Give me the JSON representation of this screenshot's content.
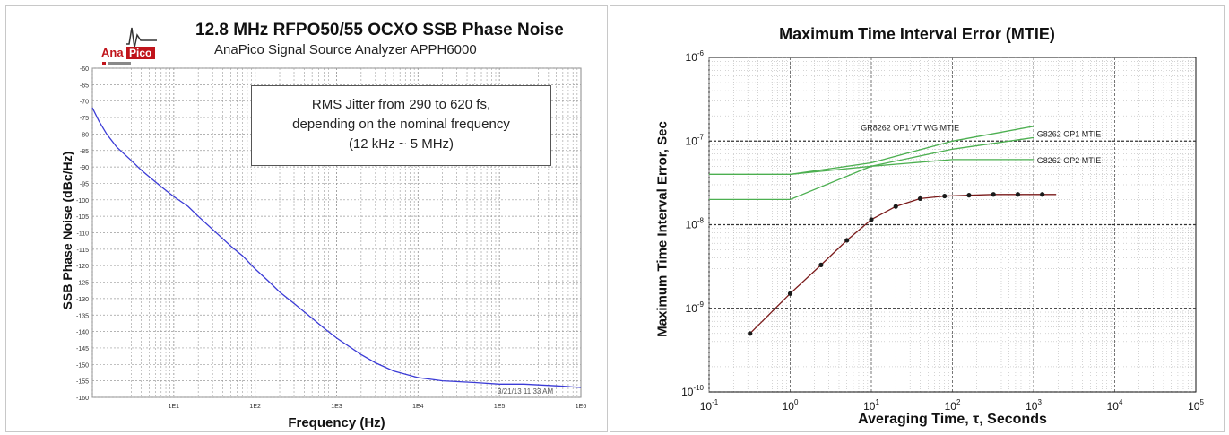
{
  "left": {
    "title": "12.8 MHz RFPO50/55 OCXO SSB Phase Noise",
    "subtitle": "AnaPico Signal Source Analyzer APPH6000",
    "logo_text": "AnaPico",
    "annotation_lines": [
      "RMS Jitter from 290 to 620 fs,",
      "depending on the nominal frequency",
      "(12 kHz ~ 5 MHz)"
    ],
    "timestamp": "3/21/13 11:33 AM"
  },
  "right": {
    "title": "Maximum Time Interval Error (MTIE)"
  },
  "chart_data": [
    {
      "type": "line",
      "title": "12.8 MHz RFPO50/55 OCXO SSB Phase Noise",
      "xlabel": "Frequency (Hz)",
      "ylabel": "SSB Phase Noise (dBc/Hz)",
      "xscale": "log",
      "xlim": [
        1,
        1000000
      ],
      "ylim": [
        -160,
        -60
      ],
      "xticks": [
        "1E1",
        "1E2",
        "1E3",
        "1E4",
        "1E5",
        "1E6"
      ],
      "yticks": [
        "-60",
        "-65",
        "-70",
        "-75",
        "-80",
        "-85",
        "-90",
        "-95",
        "-100",
        "-105",
        "-110",
        "-115",
        "-120",
        "-125",
        "-130",
        "-135",
        "-140",
        "-145",
        "-150",
        "-155",
        "-160"
      ],
      "grid": true,
      "color": "#3b3bd6",
      "series": [
        {
          "x": [
            1,
            1.2,
            1.5,
            2,
            3,
            4,
            5,
            7,
            10,
            15,
            20,
            30,
            50,
            70,
            100,
            150,
            200,
            300,
            500,
            700,
            1000,
            2000,
            3000,
            5000,
            10000,
            20000,
            50000,
            100000,
            200000,
            500000,
            1000000
          ],
          "y": [
            -72,
            -76,
            -80,
            -84,
            -88,
            -91,
            -93,
            -96,
            -99,
            -102,
            -105,
            -109,
            -114,
            -117,
            -121,
            -125,
            -128,
            -131.5,
            -136,
            -139,
            -142,
            -147,
            -149.5,
            -152,
            -154,
            -155,
            -155.5,
            -156,
            -156,
            -156.5,
            -157
          ]
        }
      ]
    },
    {
      "type": "line",
      "title": "Maximum Time Interval Error (MTIE)",
      "xlabel": "Averaging Time, τ, Seconds",
      "ylabel": "Maximum Time Interval Error, Sec",
      "xscale": "log",
      "yscale": "log",
      "xlim": [
        0.1,
        100000
      ],
      "ylim": [
        1e-10,
        1e-06
      ],
      "xticks": [
        "10-1",
        "100",
        "101",
        "102",
        "103",
        "104",
        "105"
      ],
      "yticks": [
        "10-10",
        "10-9",
        "10-8",
        "10-7",
        "10-6"
      ],
      "grid": true,
      "series": [
        {
          "name": "GR8262 OP1 VT WG MTIE",
          "color": "#4caf50",
          "x": [
            0.1,
            1,
            10,
            100,
            1000
          ],
          "y": [
            4e-08,
            4e-08,
            5.5e-08,
            1e-07,
            1.5e-07
          ]
        },
        {
          "name": "G8262 OP1 MTIE",
          "color": "#4caf50",
          "x": [
            0.1,
            1,
            10,
            100,
            1000
          ],
          "y": [
            2e-08,
            2e-08,
            5e-08,
            8e-08,
            1.1e-07
          ]
        },
        {
          "name": "G8262 OP2 MTIE",
          "color": "#4caf50",
          "x": [
            0.1,
            1,
            10,
            100,
            1000
          ],
          "y": [
            4e-08,
            4e-08,
            5e-08,
            6e-08,
            6e-08
          ]
        },
        {
          "name": "",
          "color": "#7a1a1a",
          "markers": true,
          "x": [
            0.32,
            1,
            2.4,
            5,
            10,
            20,
            40,
            80,
            160,
            320,
            640,
            1280,
            1900
          ],
          "y": [
            5e-10,
            1.5e-09,
            3.3e-09,
            6.5e-09,
            1.15e-08,
            1.65e-08,
            2.05e-08,
            2.2e-08,
            2.25e-08,
            2.3e-08,
            2.3e-08,
            2.3e-08,
            2.3e-08
          ]
        }
      ]
    }
  ]
}
